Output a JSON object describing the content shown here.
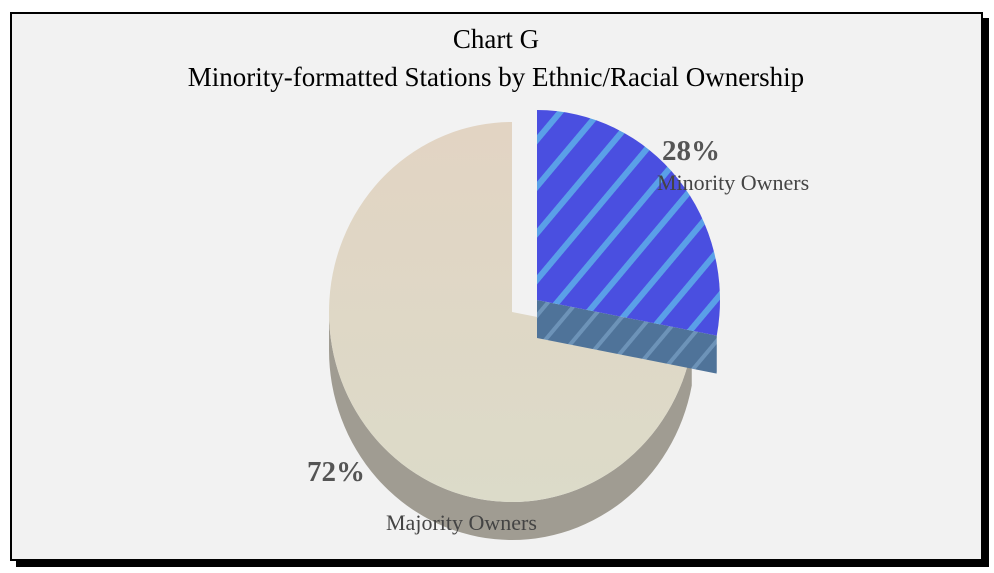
{
  "chart_data": {
    "type": "pie",
    "title": "Chart G",
    "subtitle": "Minority-formatted Stations by Ethnic/Racial Ownership",
    "slices": [
      {
        "label": "Minority Owners",
        "value": 28,
        "value_label": "28%",
        "color": "#4a4fe0",
        "side_color": "#4f7399",
        "pattern": "diagonal-hatch",
        "exploded": true
      },
      {
        "label": "Majority Owners",
        "value": 72,
        "value_label": "72%",
        "color": "#ddd6c6",
        "side_color": "#a09c92",
        "exploded": false
      }
    ],
    "legend": "none",
    "style": "3d-exploded"
  }
}
